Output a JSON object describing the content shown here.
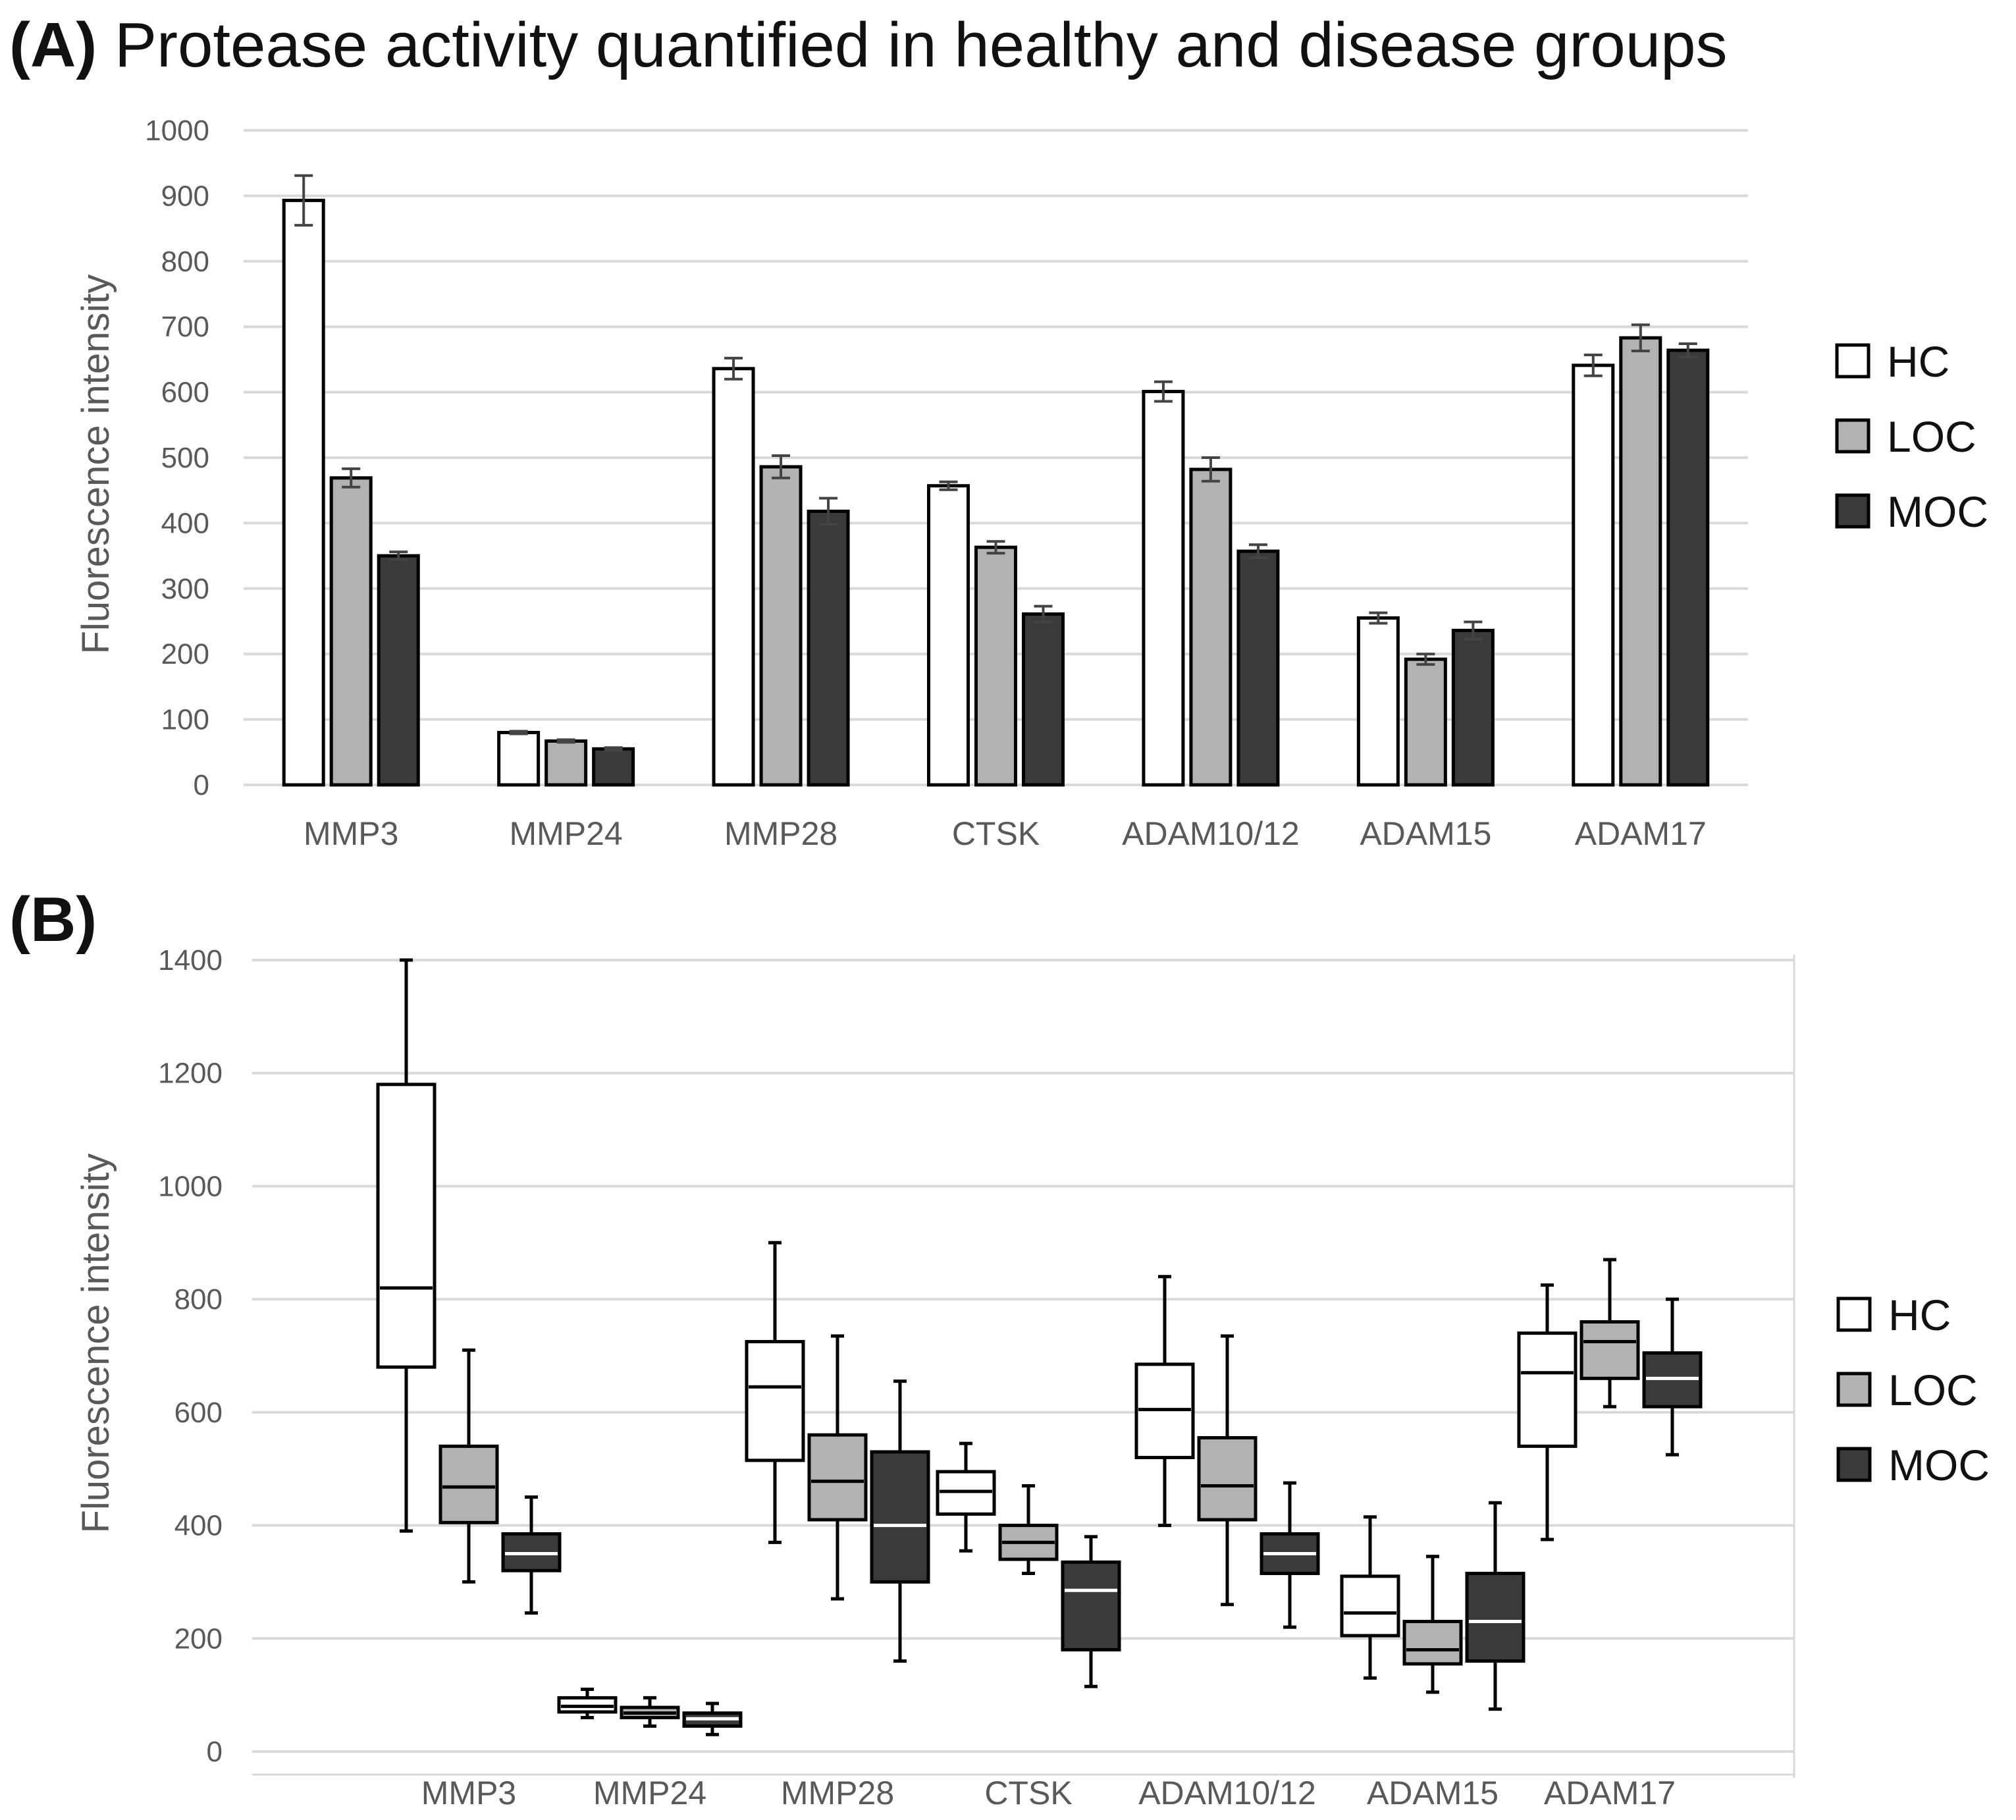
{
  "panels": {
    "a": {
      "label": "(A)",
      "title": "Protease activity quantified in healthy and disease groups"
    },
    "b": {
      "label": "(B)"
    }
  },
  "chart_data": [
    {
      "type": "bar",
      "title": "Protease activity quantified in healthy and disease groups",
      "ylabel": "Fluorescence intensity",
      "xlabel": "",
      "ylim": [
        0,
        1000
      ],
      "yticks": [
        0,
        100,
        200,
        300,
        400,
        500,
        600,
        700,
        800,
        900,
        1000
      ],
      "grid": true,
      "legend": "right",
      "categories": [
        "MMP3",
        "MMP24",
        "MMP28",
        "CTSK",
        "ADAM10/12",
        "ADAM15",
        "ADAM17"
      ],
      "series": [
        {
          "name": "HC",
          "color": "#ffffff",
          "values": [
            893,
            80,
            636,
            457,
            601,
            255,
            641
          ],
          "errors": [
            38,
            2,
            16,
            6,
            15,
            8,
            16
          ]
        },
        {
          "name": "LOC",
          "color": "#b2b2b2",
          "values": [
            469,
            67,
            486,
            363,
            482,
            192,
            683
          ],
          "errors": [
            14,
            2,
            17,
            9,
            18,
            8,
            20
          ]
        },
        {
          "name": "MOC",
          "color": "#3a3a3a",
          "values": [
            350,
            55,
            418,
            261,
            357,
            236,
            664
          ],
          "errors": [
            6,
            2,
            20,
            12,
            10,
            13,
            10
          ]
        }
      ]
    },
    {
      "type": "box",
      "title": "",
      "ylabel": "Fluorescence intensity",
      "xlabel": "",
      "ylim": [
        0,
        1400
      ],
      "yticks": [
        0,
        200,
        400,
        600,
        800,
        1000,
        1200,
        1400
      ],
      "grid": true,
      "legend": "right",
      "categories": [
        "MMP3",
        "MMP24",
        "MMP28",
        "CTSK",
        "ADAM10/12",
        "ADAM15",
        "ADAM17"
      ],
      "series": [
        {
          "name": "HC",
          "color": "#ffffff",
          "median_color": "#000000",
          "boxes": [
            {
              "min": 390,
              "q1": 680,
              "median": 820,
              "q3": 1180,
              "max": 1400
            },
            {
              "min": 60,
              "q1": 70,
              "median": 80,
              "q3": 95,
              "max": 110
            },
            {
              "min": 370,
              "q1": 515,
              "median": 645,
              "q3": 725,
              "max": 900
            },
            {
              "min": 355,
              "q1": 420,
              "median": 460,
              "q3": 495,
              "max": 545
            },
            {
              "min": 400,
              "q1": 520,
              "median": 605,
              "q3": 685,
              "max": 840
            },
            {
              "min": 130,
              "q1": 205,
              "median": 245,
              "q3": 310,
              "max": 415
            },
            {
              "min": 375,
              "q1": 540,
              "median": 670,
              "q3": 740,
              "max": 825
            }
          ]
        },
        {
          "name": "LOC",
          "color": "#b2b2b2",
          "median_color": "#000000",
          "boxes": [
            {
              "min": 300,
              "q1": 405,
              "median": 468,
              "q3": 540,
              "max": 710
            },
            {
              "min": 45,
              "q1": 60,
              "median": 68,
              "q3": 78,
              "max": 95
            },
            {
              "min": 270,
              "q1": 410,
              "median": 478,
              "q3": 560,
              "max": 735
            },
            {
              "min": 315,
              "q1": 340,
              "median": 370,
              "q3": 400,
              "max": 470
            },
            {
              "min": 260,
              "q1": 410,
              "median": 470,
              "q3": 555,
              "max": 735
            },
            {
              "min": 105,
              "q1": 155,
              "median": 180,
              "q3": 230,
              "max": 345
            },
            {
              "min": 610,
              "q1": 660,
              "median": 725,
              "q3": 760,
              "max": 870
            }
          ]
        },
        {
          "name": "MOC",
          "color": "#3a3a3a",
          "median_color": "#ffffff",
          "boxes": [
            {
              "min": 245,
              "q1": 320,
              "median": 350,
              "q3": 385,
              "max": 450
            },
            {
              "min": 30,
              "q1": 45,
              "median": 58,
              "q3": 68,
              "max": 85
            },
            {
              "min": 160,
              "q1": 300,
              "median": 400,
              "q3": 530,
              "max": 655
            },
            {
              "min": 115,
              "q1": 180,
              "median": 285,
              "q3": 335,
              "max": 380
            },
            {
              "min": 220,
              "q1": 315,
              "median": 350,
              "q3": 385,
              "max": 475
            },
            {
              "min": 75,
              "q1": 160,
              "median": 230,
              "q3": 315,
              "max": 440
            },
            {
              "min": 525,
              "q1": 610,
              "median": 660,
              "q3": 705,
              "max": 800
            }
          ]
        }
      ]
    }
  ]
}
